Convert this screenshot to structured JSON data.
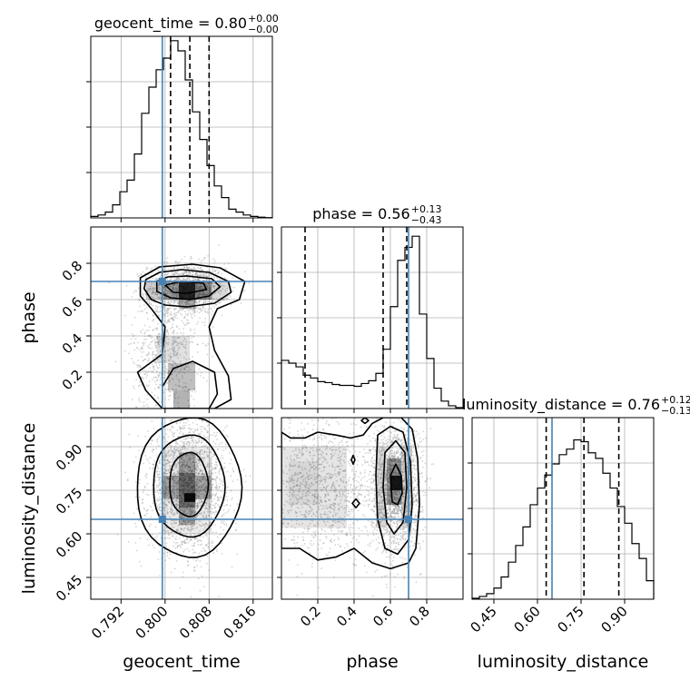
{
  "chart_data": {
    "type": "corner",
    "parameters": [
      "geocent_time",
      "phase",
      "luminosity_distance"
    ],
    "truths": {
      "geocent_time": 0.7995,
      "phase": 0.7,
      "luminosity_distance": 0.65
    },
    "colors": {
      "truth": "#4682b4",
      "line": "#000000",
      "grid": "#b0b0b0",
      "scatter": "#888888"
    },
    "marginals": {
      "geocent_time": {
        "title": "geocent_time = 0.80",
        "sup": "+0.00",
        "sub": "−0.00",
        "range": [
          0.7865,
          0.8195
        ],
        "quantiles": [
          0.801,
          0.8045,
          0.808
        ],
        "ticks": [
          0.792,
          0.8,
          0.808,
          0.816
        ],
        "tick_labels": [
          "0.792",
          "0.800",
          "0.808",
          "0.816"
        ],
        "ymax": 12.5,
        "hist": [
          0.1,
          0.2,
          0.4,
          0.9,
          1.8,
          2.6,
          4.4,
          7.2,
          9.0,
          10.2,
          11.0,
          12.2,
          11.5,
          9.5,
          7.3,
          5.4,
          3.6,
          2.2,
          1.4,
          0.6,
          0.4,
          0.2,
          0.1,
          0.05,
          0.02
        ]
      },
      "phase": {
        "title": "phase = 0.56",
        "sup": "+0.13",
        "sub": "−0.43",
        "range": [
          0.0,
          1.0
        ],
        "quantiles": [
          0.13,
          0.56,
          0.69
        ],
        "ticks": [
          0.2,
          0.4,
          0.6,
          0.8
        ],
        "tick_labels": [
          "0.2",
          "0.4",
          "0.6",
          "0.8"
        ],
        "ymax": 9.8,
        "hist": [
          2.6,
          2.45,
          2.25,
          1.8,
          1.65,
          1.45,
          1.4,
          1.3,
          1.25,
          1.25,
          1.2,
          1.35,
          1.5,
          1.9,
          3.2,
          5.5,
          8.0,
          8.7,
          9.3,
          5.1,
          2.7,
          1.1,
          0.4,
          0.15,
          0.05
        ]
      },
      "luminosity_distance": {
        "title": "luminosity_distance = 0.76",
        "sup": "+0.12",
        "sub": "−0.13",
        "range": [
          0.375,
          1.0
        ],
        "quantiles": [
          0.63,
          0.76,
          0.88
        ],
        "ticks": [
          0.45,
          0.6,
          0.75,
          0.9
        ],
        "tick_labels": [
          "0.45",
          "0.60",
          "0.75",
          "0.90"
        ],
        "ymax": 9.8,
        "hist": [
          0.05,
          0.15,
          0.3,
          0.6,
          1.2,
          2.0,
          2.9,
          3.9,
          5.1,
          6.0,
          6.7,
          7.3,
          7.8,
          8.1,
          8.6,
          8.5,
          7.9,
          7.6,
          6.8,
          6.0,
          5.0,
          4.1,
          3.0,
          2.2,
          1.0
        ]
      }
    },
    "joint": {
      "phase|geocent_time": {
        "x_range": [
          0.7865,
          0.8195
        ],
        "y_range": [
          0.0,
          1.0
        ],
        "y_ticks": [
          0.2,
          0.4,
          0.6,
          0.8
        ],
        "y_tick_labels": [
          "0.2",
          "0.4",
          "0.6",
          "0.8"
        ],
        "y_label": "phase"
      },
      "luminosity_distance|geocent_time": {
        "x_range": [
          0.7865,
          0.8195
        ],
        "y_range": [
          0.375,
          1.0
        ],
        "y_ticks": [
          0.45,
          0.6,
          0.75,
          0.9
        ],
        "y_tick_labels": [
          "0.45",
          "0.60",
          "0.75",
          "0.90"
        ],
        "y_label": "luminosity_distance"
      },
      "luminosity_distance|phase": {
        "x_range": [
          0.0,
          1.0
        ],
        "y_range": [
          0.375,
          1.0
        ]
      }
    },
    "x_labels": [
      "geocent_time",
      "phase",
      "luminosity_distance"
    ]
  }
}
